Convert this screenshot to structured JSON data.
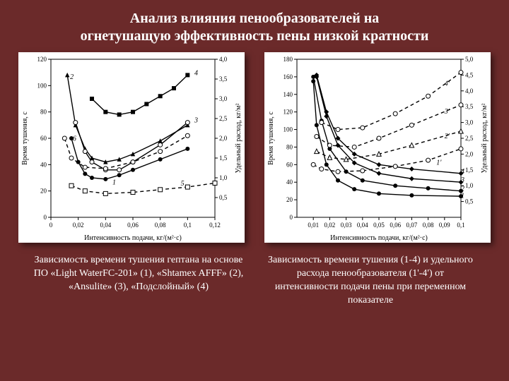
{
  "title_line1": "Анализ влияния пенообразователей на",
  "title_line2": "огнетушащую эффективность пены низкой кратности",
  "title_fontsize": 20,
  "title_color": "#ffffff",
  "background_color": "#6b2a2a",
  "chart_left": {
    "type": "line",
    "background_color": "#ffffff",
    "border_color": "#000000",
    "xlabel": "Интенсивность подачи, кг/(м²·с)",
    "ylabel_left": "Время тушения, с",
    "ylabel_right": "Удельный расход, кг/м²",
    "label_fontsize": 10,
    "tick_fontsize": 9,
    "xlim": [
      0,
      0.12
    ],
    "xticks": [
      0,
      0.02,
      0.04,
      0.06,
      0.08,
      0.1,
      0.12
    ],
    "ylim_left": [
      0,
      120
    ],
    "yticks_left": [
      0,
      20,
      40,
      60,
      80,
      100,
      120
    ],
    "ylim_right": [
      0,
      4.0
    ],
    "yticks_right": [
      0.5,
      1.0,
      1.5,
      2.0,
      2.5,
      3.0,
      3.5,
      4.0
    ],
    "series": {
      "1": {
        "label": "1",
        "marker": "circle",
        "fill": "#000000",
        "dash": "solid",
        "x": [
          0.015,
          0.02,
          0.025,
          0.03,
          0.04,
          0.05,
          0.06,
          0.08,
          0.1
        ],
        "y": [
          60,
          42,
          33,
          30,
          29,
          32,
          36,
          44,
          52
        ]
      },
      "2": {
        "label": "2",
        "marker": "triangle",
        "fill": "#000000",
        "dash": "solid",
        "x": [
          0.012,
          0.018,
          0.025,
          0.03,
          0.04,
          0.05,
          0.06,
          0.08,
          0.1
        ],
        "y": [
          108,
          70,
          52,
          45,
          42,
          44,
          48,
          58,
          70
        ]
      },
      "3": {
        "label": "3",
        "marker": "circle",
        "fill": "open",
        "dash": "solid",
        "x": [
          0.018,
          0.025,
          0.03,
          0.04,
          0.05,
          0.06,
          0.08,
          0.1
        ],
        "y": [
          72,
          50,
          42,
          36,
          36,
          42,
          55,
          72
        ]
      },
      "4": {
        "label": "4",
        "marker": "square",
        "fill": "#000000",
        "dash": "solid",
        "x": [
          0.03,
          0.04,
          0.05,
          0.06,
          0.07,
          0.08,
          0.09,
          0.1
        ],
        "y": [
          90,
          80,
          78,
          80,
          86,
          92,
          98,
          108
        ]
      },
      "5": {
        "label": "5",
        "marker": "square",
        "fill": "open",
        "dash": "dash",
        "x": [
          0.015,
          0.025,
          0.04,
          0.06,
          0.08,
          0.1,
          0.12
        ],
        "y": [
          24,
          20,
          18,
          19,
          21,
          23,
          26
        ]
      },
      "6": {
        "label": "6",
        "marker": "circle",
        "fill": "open",
        "dash": "dash",
        "x": [
          0.01,
          0.015,
          0.025,
          0.04,
          0.06,
          0.08,
          0.1
        ],
        "y": [
          60,
          45,
          38,
          37,
          42,
          50,
          62
        ]
      }
    },
    "series_label_positions": {
      "1": [
        0.045,
        25
      ],
      "2": [
        0.014,
        105
      ],
      "3": [
        0.105,
        72
      ],
      "4": [
        0.105,
        108
      ],
      "5": [
        0.095,
        24
      ],
      "6": [
        0.016,
        58
      ]
    },
    "line_width": 1.4
  },
  "chart_right": {
    "type": "line",
    "background_color": "#ffffff",
    "border_color": "#000000",
    "xlabel": "Интенсивность подачи, кг/(м²·с)",
    "ylabel_left": "Время тушения, с",
    "ylabel_right": "Удельный расход, кг/м²",
    "label_fontsize": 10,
    "tick_fontsize": 9,
    "xlim": [
      0,
      0.1
    ],
    "xticks": [
      0.01,
      0.02,
      0.03,
      0.04,
      0.05,
      0.06,
      0.07,
      0.08,
      0.09,
      0.1
    ],
    "ylim_left": [
      0,
      180
    ],
    "yticks_left": [
      0,
      20,
      40,
      60,
      80,
      100,
      120,
      140,
      160,
      180
    ],
    "ylim_right": [
      0,
      5.0
    ],
    "yticks_right": [
      0.5,
      1.0,
      1.5,
      2.0,
      2.5,
      3.0,
      3.5,
      4.0,
      4.5,
      5.0
    ],
    "series_solid": {
      "1": {
        "marker": "circle",
        "x": [
          0.01,
          0.012,
          0.018,
          0.025,
          0.035,
          0.05,
          0.07,
          0.1
        ],
        "y": [
          155,
          105,
          60,
          42,
          32,
          27,
          25,
          24
        ]
      },
      "2": {
        "marker": "circle",
        "x": [
          0.01,
          0.015,
          0.02,
          0.03,
          0.04,
          0.06,
          0.08,
          0.1
        ],
        "y": [
          160,
          110,
          78,
          52,
          42,
          36,
          33,
          30
        ]
      },
      "3": {
        "marker": "diamond",
        "x": [
          0.012,
          0.018,
          0.025,
          0.035,
          0.05,
          0.07,
          0.1
        ],
        "y": [
          160,
          115,
          82,
          62,
          50,
          44,
          40
        ]
      },
      "4": {
        "marker": "diamond",
        "x": [
          0.012,
          0.018,
          0.025,
          0.035,
          0.05,
          0.07,
          0.1
        ],
        "y": [
          162,
          120,
          90,
          72,
          60,
          55,
          50
        ]
      }
    },
    "series_dash": {
      "1p": {
        "label": "1'",
        "marker": "circle",
        "x": [
          0.01,
          0.015,
          0.025,
          0.04,
          0.06,
          0.08,
          0.1
        ],
        "y": [
          60,
          55,
          52,
          53,
          58,
          65,
          78
        ]
      },
      "2p": {
        "label": "2'",
        "marker": "triangle",
        "x": [
          0.012,
          0.02,
          0.03,
          0.05,
          0.07,
          0.1
        ],
        "y": [
          75,
          68,
          66,
          72,
          82,
          98
        ]
      },
      "3p": {
        "label": "3'",
        "marker": "circle",
        "x": [
          0.012,
          0.02,
          0.035,
          0.05,
          0.07,
          0.1
        ],
        "y": [
          92,
          82,
          80,
          90,
          105,
          128
        ]
      },
      "4p": {
        "label": "4'",
        "marker": "circle",
        "x": [
          0.015,
          0.025,
          0.04,
          0.06,
          0.08,
          0.1
        ],
        "y": [
          108,
          100,
          102,
          118,
          138,
          165
        ]
      }
    },
    "series_label_positions": {
      "1": [
        0.1,
        22
      ],
      "2": [
        0.1,
        30
      ],
      "3": [
        0.1,
        40
      ],
      "4": [
        0.1,
        50
      ],
      "1'": [
        0.085,
        60
      ],
      "2'": [
        0.09,
        90
      ],
      "3'": [
        0.09,
        118
      ],
      "4'": [
        0.09,
        150
      ]
    },
    "line_width": 1.4
  },
  "caption_left": "Зависимость времени тушения гептана на основе ПО\n«Light WaterFC-201» (1), «Shtamex AFFF» (2), «Ansulite» (3), «Подслойный» (4)",
  "caption_right": "Зависимость времени тушения (1-4) и удельного расхода пенообразователя (1'-4') от интенсивности подачи пены при переменном показателе"
}
